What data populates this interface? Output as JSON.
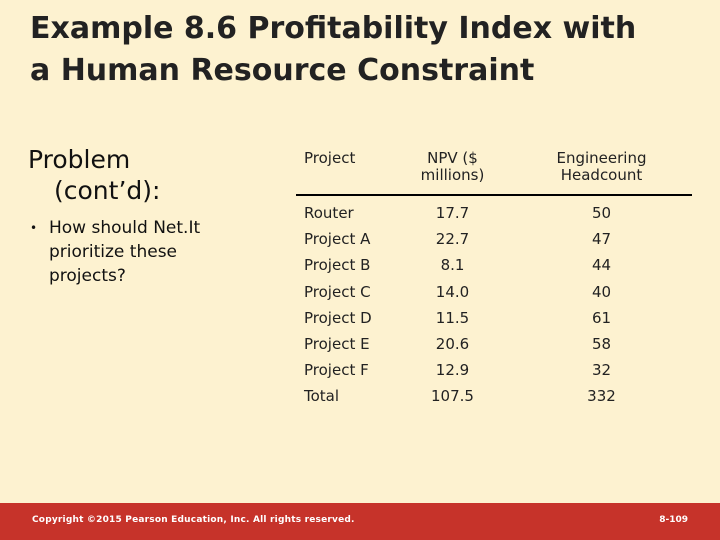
{
  "slide": {
    "title_line1": "Example 8.6 Profitability Index with",
    "title_line2": "a Human Resource Constraint",
    "heading_line1": "Problem",
    "heading_line2": "(cont’d):",
    "bullets": [
      "How should Net.It prioritize these projects?"
    ]
  },
  "table": {
    "headers": {
      "project": "Project",
      "npv_line1": "NPV ($",
      "npv_line2": "millions)",
      "headcount_line1": "Engineering",
      "headcount_line2": "Headcount"
    },
    "rows": [
      {
        "project": "Router",
        "npv": "17.7",
        "headcount": "50"
      },
      {
        "project": "Project A",
        "npv": "22.7",
        "headcount": "47"
      },
      {
        "project": "Project B",
        "npv": "8.1",
        "headcount": "44"
      },
      {
        "project": "Project C",
        "npv": "14.0",
        "headcount": "40"
      },
      {
        "project": "Project D",
        "npv": "11.5",
        "headcount": "61"
      },
      {
        "project": "Project E",
        "npv": "20.6",
        "headcount": "58"
      },
      {
        "project": "Project F",
        "npv": "12.9",
        "headcount": "32"
      },
      {
        "project": "Total",
        "npv": "107.5",
        "headcount": "332"
      }
    ]
  },
  "footer": {
    "copyright": "Copyright ©2015 Pearson Education, Inc. All rights reserved.",
    "page": "8-109"
  },
  "colors": {
    "background": "#fdf2d0",
    "footer_bar": "#c6332a"
  }
}
